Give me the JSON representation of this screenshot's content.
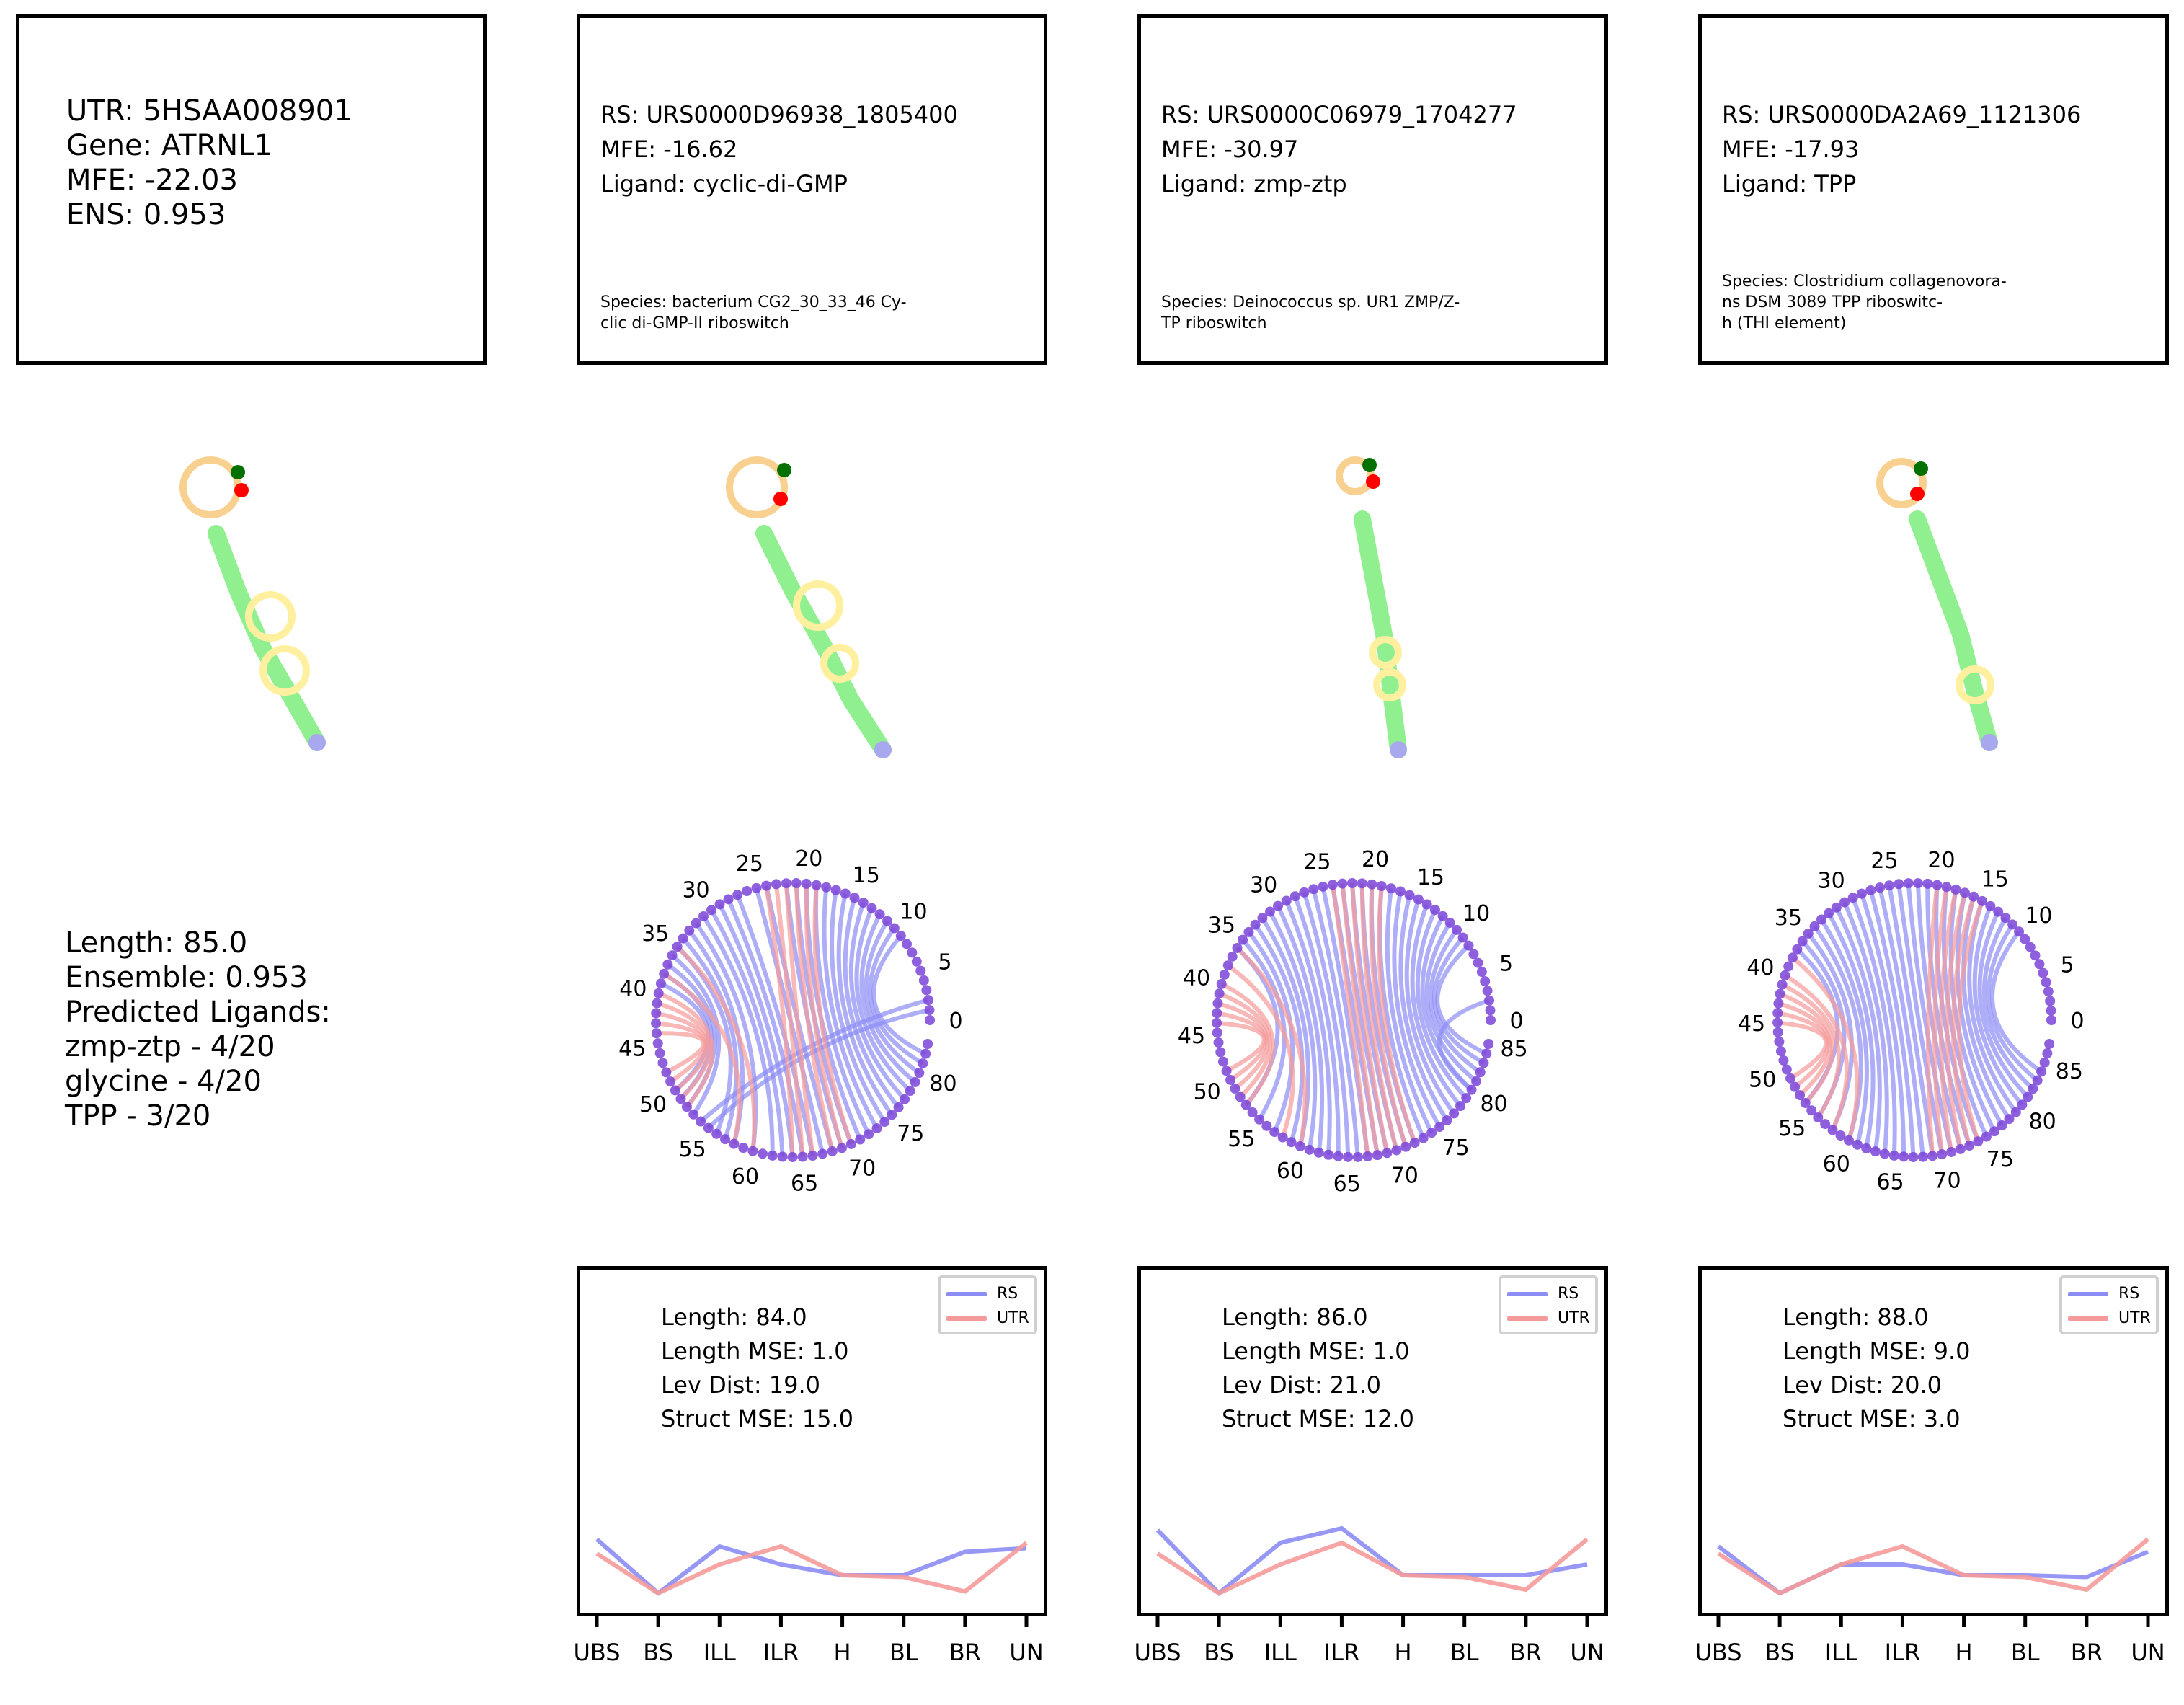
{
  "utr": {
    "line1": "UTR: 5HSAA008901",
    "line2": "Gene: ATRNL1",
    "line3": "MFE: -22.03",
    "line4": "ENS: 0.953",
    "stats": [
      "Length: 85.0",
      "Ensemble: 0.953",
      "Predicted Ligands:",
      "zmp-ztp - 4/20",
      "glycine - 4/20",
      "TPP - 3/20"
    ]
  },
  "rs": [
    {
      "id": "RS: URS0000D96938_1805400",
      "mfe": "MFE: -16.62",
      "ligand": "Ligand: cyclic-di-GMP",
      "species": [
        "Species: bacterium CG2_30_33_46 Cy-",
        "clic di-GMP-II riboswitch"
      ],
      "metrics": [
        "Length: 84.0",
        "Length MSE: 1.0",
        "Lev Dist: 19.0",
        "Struct MSE: 15.0"
      ]
    },
    {
      "id": "RS: URS0000C06979_1704277",
      "mfe": "MFE: -30.97",
      "ligand": "Ligand: zmp-ztp",
      "species": [
        "Species: Deinococcus sp. UR1 ZMP/Z-",
        "TP riboswitch"
      ],
      "metrics": [
        "Length: 86.0",
        "Length MSE: 1.0",
        "Lev Dist: 21.0",
        "Struct MSE: 12.0"
      ]
    },
    {
      "id": "RS: URS0000DA2A69_1121306",
      "mfe": "MFE: -17.93",
      "ligand": "Ligand: TPP",
      "species": [
        "Species: Clostridium collagenovora-",
        "ns DSM 3089 TPP riboswitc-",
        "h (THI element)"
      ],
      "metrics": [
        "Length: 88.0",
        "Length MSE: 9.0",
        "Lev Dist: 20.0",
        "Struct MSE: 3.0"
      ]
    }
  ],
  "legend": {
    "rs": "RS",
    "utr": "UTR"
  },
  "colors": {
    "rs": "#8c8cf5",
    "utr": "#f59a9a",
    "stem": "#90f090",
    "hairpin": "#f8d090",
    "interior": "#fff0a0",
    "tail": "#a8a8ee",
    "start": "#007000",
    "end": "#ff0000"
  },
  "chart_data": [
    {
      "type": "line",
      "categories": [
        "UBS",
        "BS",
        "ILL",
        "ILR",
        "H",
        "BL",
        "BR",
        "UN"
      ],
      "series": [
        {
          "name": "RS",
          "values": [
            0.32,
            0.02,
            0.28,
            0.18,
            0.12,
            0.12,
            0.25,
            0.27
          ]
        },
        {
          "name": "UTR",
          "values": [
            0.24,
            0.02,
            0.18,
            0.28,
            0.12,
            0.11,
            0.03,
            0.3
          ]
        }
      ]
    },
    {
      "type": "line",
      "categories": [
        "UBS",
        "BS",
        "ILL",
        "ILR",
        "H",
        "BL",
        "BR",
        "UN"
      ],
      "series": [
        {
          "name": "RS",
          "values": [
            0.37,
            0.02,
            0.3,
            0.38,
            0.12,
            0.12,
            0.12,
            0.18
          ]
        },
        {
          "name": "UTR",
          "values": [
            0.24,
            0.02,
            0.18,
            0.3,
            0.12,
            0.11,
            0.04,
            0.32
          ]
        }
      ]
    },
    {
      "type": "line",
      "categories": [
        "UBS",
        "BS",
        "ILL",
        "ILR",
        "H",
        "BL",
        "BR",
        "UN"
      ],
      "series": [
        {
          "name": "RS",
          "values": [
            0.28,
            0.02,
            0.18,
            0.18,
            0.12,
            0.12,
            0.11,
            0.25
          ]
        },
        {
          "name": "UTR",
          "values": [
            0.24,
            0.02,
            0.18,
            0.28,
            0.12,
            0.11,
            0.04,
            0.32
          ]
        }
      ]
    }
  ],
  "arc_diagrams": [
    {
      "length": 84,
      "tick_labels": [
        "0",
        "5",
        "10",
        "15",
        "20",
        "25",
        "30",
        "35",
        "40",
        "45",
        "50",
        "55",
        "60",
        "65",
        "70",
        "75",
        "80"
      ],
      "pairs_rs": [
        [
          1,
          55
        ],
        [
          2,
          54
        ],
        [
          9,
          82
        ],
        [
          10,
          81
        ],
        [
          11,
          80
        ],
        [
          12,
          79
        ],
        [
          13,
          78
        ],
        [
          14,
          77
        ],
        [
          15,
          76
        ],
        [
          16,
          75
        ],
        [
          17,
          74
        ],
        [
          18,
          73
        ],
        [
          19,
          72
        ],
        [
          20,
          71
        ],
        [
          21,
          70
        ],
        [
          22,
          69
        ],
        [
          24,
          68
        ],
        [
          25,
          67
        ],
        [
          27,
          66
        ],
        [
          28,
          65
        ],
        [
          29,
          64
        ],
        [
          30,
          63
        ],
        [
          31,
          62
        ],
        [
          32,
          60
        ],
        [
          33,
          58
        ],
        [
          34,
          57
        ],
        [
          35,
          56
        ],
        [
          36,
          53
        ],
        [
          37,
          52
        ],
        [
          38,
          51
        ],
        [
          39,
          50
        ]
      ],
      "pairs_utr": [
        [
          19,
          70
        ],
        [
          20,
          69
        ],
        [
          21,
          68
        ],
        [
          22,
          66
        ],
        [
          23,
          65
        ],
        [
          24,
          64
        ],
        [
          35,
          60
        ],
        [
          38,
          58
        ],
        [
          40,
          52
        ],
        [
          41,
          51
        ],
        [
          42,
          50
        ],
        [
          43,
          49
        ],
        [
          44,
          48
        ]
      ]
    },
    {
      "length": 86,
      "tick_labels": [
        "0",
        "5",
        "10",
        "15",
        "20",
        "25",
        "30",
        "35",
        "40",
        "45",
        "50",
        "55",
        "60",
        "65",
        "70",
        "75",
        "80",
        "85"
      ],
      "pairs_rs": [
        [
          2,
          80
        ],
        [
          8,
          84
        ],
        [
          9,
          83
        ],
        [
          10,
          82
        ],
        [
          11,
          81
        ],
        [
          12,
          80
        ],
        [
          13,
          79
        ],
        [
          14,
          78
        ],
        [
          15,
          77
        ],
        [
          16,
          76
        ],
        [
          17,
          75
        ],
        [
          18,
          74
        ],
        [
          19,
          73
        ],
        [
          20,
          72
        ],
        [
          21,
          71
        ],
        [
          22,
          70
        ],
        [
          23,
          69
        ],
        [
          24,
          68
        ],
        [
          25,
          67
        ],
        [
          26,
          66
        ],
        [
          27,
          65
        ],
        [
          28,
          64
        ],
        [
          29,
          63
        ],
        [
          30,
          62
        ],
        [
          31,
          61
        ],
        [
          32,
          60
        ],
        [
          33,
          59
        ],
        [
          34,
          57
        ],
        [
          35,
          55
        ],
        [
          36,
          53
        ]
      ],
      "pairs_utr": [
        [
          19,
          72
        ],
        [
          20,
          71
        ],
        [
          21,
          70
        ],
        [
          22,
          69
        ],
        [
          23,
          68
        ],
        [
          24,
          67
        ],
        [
          36,
          60
        ],
        [
          38,
          58
        ],
        [
          40,
          53
        ],
        [
          41,
          52
        ],
        [
          42,
          51
        ],
        [
          43,
          50
        ],
        [
          44,
          49
        ]
      ]
    },
    {
      "length": 88,
      "tick_labels": [
        "0",
        "5",
        "10",
        "15",
        "20",
        "25",
        "30",
        "35",
        "40",
        "45",
        "50",
        "55",
        "60",
        "65",
        "70",
        "75",
        "80",
        "85"
      ],
      "pairs_rs": [
        [
          10,
          84
        ],
        [
          11,
          83
        ],
        [
          12,
          82
        ],
        [
          13,
          81
        ],
        [
          14,
          80
        ],
        [
          15,
          79
        ],
        [
          16,
          78
        ],
        [
          17,
          77
        ],
        [
          18,
          76
        ],
        [
          19,
          75
        ],
        [
          20,
          74
        ],
        [
          21,
          73
        ],
        [
          22,
          72
        ],
        [
          23,
          71
        ],
        [
          24,
          70
        ],
        [
          25,
          69
        ],
        [
          26,
          68
        ],
        [
          27,
          67
        ],
        [
          28,
          66
        ],
        [
          29,
          65
        ],
        [
          30,
          64
        ],
        [
          31,
          63
        ],
        [
          32,
          62
        ],
        [
          33,
          61
        ],
        [
          34,
          60
        ],
        [
          35,
          58
        ],
        [
          36,
          56
        ],
        [
          37,
          54
        ]
      ],
      "pairs_utr": [
        [
          15,
          74
        ],
        [
          16,
          73
        ],
        [
          17,
          72
        ],
        [
          18,
          71
        ],
        [
          19,
          70
        ],
        [
          20,
          69
        ],
        [
          38,
          60
        ],
        [
          40,
          58
        ],
        [
          41,
          56
        ],
        [
          42,
          54
        ],
        [
          43,
          53
        ],
        [
          44,
          52
        ],
        [
          45,
          51
        ]
      ]
    }
  ]
}
